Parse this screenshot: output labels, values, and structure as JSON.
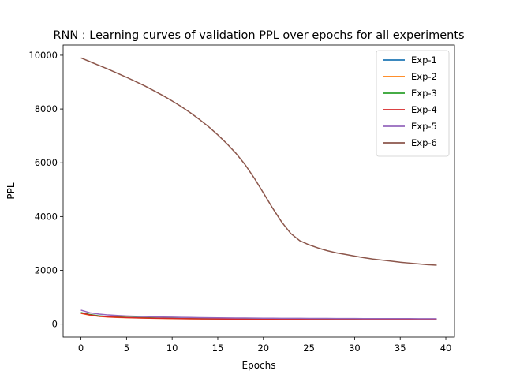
{
  "chart_data": {
    "type": "line",
    "title": "RNN : Learning curves of validation PPL over epochs for all experiments",
    "xlabel": "Epochs",
    "ylabel": "PPL",
    "xlim": [
      -1.95,
      40.95
    ],
    "ylim": [
      -480,
      10380
    ],
    "xticks": [
      0,
      5,
      10,
      15,
      20,
      25,
      30,
      35,
      40
    ],
    "yticks": [
      0,
      2000,
      4000,
      6000,
      8000,
      10000
    ],
    "grid": false,
    "legend_position": "top-right",
    "x": [
      0,
      1,
      2,
      3,
      4,
      5,
      6,
      7,
      8,
      9,
      10,
      11,
      12,
      13,
      14,
      15,
      16,
      17,
      18,
      19,
      20,
      21,
      22,
      23,
      24,
      25,
      26,
      27,
      28,
      29,
      30,
      31,
      32,
      33,
      34,
      35,
      36,
      37,
      38,
      39
    ],
    "series": [
      {
        "name": "Exp-1",
        "color": "#1f77b4",
        "values": [
          420,
          350,
          300,
          275,
          260,
          248,
          238,
          230,
          223,
          217,
          212,
          207,
          203,
          199,
          196,
          193,
          190,
          188,
          186,
          184,
          182,
          180,
          178,
          177,
          175,
          174,
          173,
          172,
          171,
          170,
          169,
          168,
          167,
          166,
          166,
          165,
          164,
          164,
          163,
          163
        ]
      },
      {
        "name": "Exp-2",
        "color": "#ff7f0e",
        "values": [
          400,
          330,
          285,
          262,
          248,
          237,
          228,
          221,
          215,
          209,
          204,
          200,
          196,
          193,
          190,
          187,
          185,
          182,
          180,
          178,
          176,
          175,
          173,
          172,
          170,
          169,
          168,
          167,
          166,
          165,
          164,
          163,
          162,
          161,
          161,
          160,
          159,
          159,
          158,
          158
        ]
      },
      {
        "name": "Exp-3",
        "color": "#2ca02c",
        "values": [
          430,
          355,
          305,
          280,
          265,
          252,
          242,
          234,
          227,
          221,
          216,
          211,
          207,
          203,
          200,
          197,
          194,
          192,
          190,
          188,
          186,
          184,
          182,
          181,
          179,
          178,
          177,
          176,
          175,
          174,
          173,
          172,
          171,
          170,
          170,
          169,
          168,
          168,
          167,
          167
        ]
      },
      {
        "name": "Exp-4",
        "color": "#d62728",
        "values": [
          410,
          340,
          292,
          268,
          253,
          242,
          232,
          225,
          219,
          213,
          208,
          204,
          200,
          197,
          194,
          191,
          188,
          186,
          184,
          182,
          180,
          178,
          176,
          175,
          173,
          172,
          171,
          170,
          169,
          168,
          167,
          166,
          165,
          164,
          164,
          163,
          162,
          162,
          161,
          161
        ]
      },
      {
        "name": "Exp-5",
        "color": "#9467bd",
        "values": [
          520,
          420,
          370,
          340,
          320,
          303,
          290,
          280,
          271,
          263,
          256,
          250,
          245,
          240,
          236,
          232,
          229,
          226,
          223,
          221,
          219,
          217,
          215,
          213,
          212,
          210,
          209,
          208,
          207,
          206,
          205,
          204,
          203,
          203,
          202,
          201,
          201,
          200,
          200,
          199
        ]
      },
      {
        "name": "Exp-6",
        "color": "#8c564b",
        "values": [
          9900,
          9760,
          9620,
          9480,
          9330,
          9180,
          9020,
          8860,
          8680,
          8500,
          8300,
          8090,
          7860,
          7610,
          7340,
          7040,
          6710,
          6350,
          5930,
          5430,
          4880,
          4320,
          3800,
          3370,
          3100,
          2950,
          2830,
          2730,
          2650,
          2590,
          2530,
          2470,
          2420,
          2380,
          2340,
          2300,
          2270,
          2240,
          2210,
          2190
        ]
      }
    ]
  }
}
